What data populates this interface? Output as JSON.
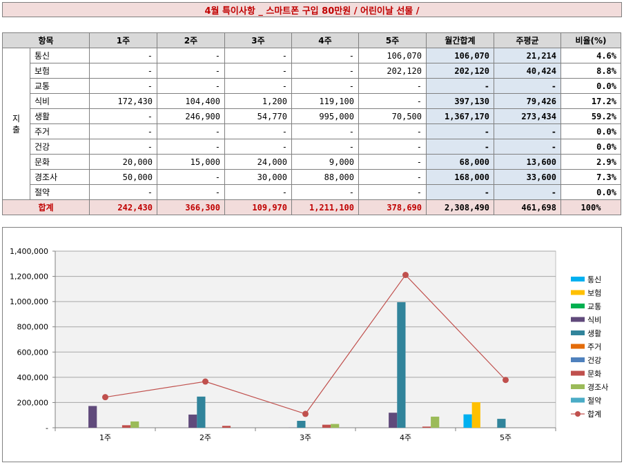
{
  "title": "4월 특이사항 _ 스마트폰 구입 80만원 / 어린이날 선물 /",
  "table": {
    "headers": [
      "항목",
      "1주",
      "2주",
      "3주",
      "4주",
      "5주",
      "월간합계",
      "주평균",
      "비율(%)"
    ],
    "group_label": "지출",
    "rows": [
      {
        "name": "통신",
        "weeks": [
          "-",
          "-",
          "-",
          "-",
          "106,070"
        ],
        "total": "106,070",
        "avg": "21,214",
        "ratio": "4.6%"
      },
      {
        "name": "보험",
        "weeks": [
          "-",
          "-",
          "-",
          "-",
          "202,120"
        ],
        "total": "202,120",
        "avg": "40,424",
        "ratio": "8.8%"
      },
      {
        "name": "교통",
        "weeks": [
          "-",
          "-",
          "-",
          "-",
          "-"
        ],
        "total": "-",
        "avg": "-",
        "ratio": "0.0%"
      },
      {
        "name": "식비",
        "weeks": [
          "172,430",
          "104,400",
          "1,200",
          "119,100",
          "-"
        ],
        "total": "397,130",
        "avg": "79,426",
        "ratio": "17.2%"
      },
      {
        "name": "생활",
        "weeks": [
          "-",
          "246,900",
          "54,770",
          "995,000",
          "70,500"
        ],
        "total": "1,367,170",
        "avg": "273,434",
        "ratio": "59.2%"
      },
      {
        "name": "주거",
        "weeks": [
          "-",
          "-",
          "-",
          "-",
          "-"
        ],
        "total": "-",
        "avg": "-",
        "ratio": "0.0%"
      },
      {
        "name": "건강",
        "weeks": [
          "-",
          "-",
          "-",
          "-",
          "-"
        ],
        "total": "-",
        "avg": "-",
        "ratio": "0.0%"
      },
      {
        "name": "문화",
        "weeks": [
          "20,000",
          "15,000",
          "24,000",
          "9,000",
          "-"
        ],
        "total": "68,000",
        "avg": "13,600",
        "ratio": "2.9%"
      },
      {
        "name": "경조사",
        "weeks": [
          "50,000",
          "-",
          "30,000",
          "88,000",
          "-"
        ],
        "total": "168,000",
        "avg": "33,600",
        "ratio": "7.3%"
      },
      {
        "name": "절약",
        "weeks": [
          "-",
          "-",
          "-",
          "-",
          "-"
        ],
        "total": "-",
        "avg": "-",
        "ratio": "0.0%"
      }
    ],
    "total_row": {
      "name": "합계",
      "weeks": [
        "242,430",
        "366,300",
        "109,970",
        "1,211,100",
        "378,690"
      ],
      "total": "2,308,490",
      "avg": "461,698",
      "ratio": "100%"
    }
  },
  "chart_data": {
    "type": "bar",
    "categories": [
      "1주",
      "2주",
      "3주",
      "4주",
      "5주"
    ],
    "ylim": [
      0,
      1400000
    ],
    "yticks": [
      0,
      200000,
      400000,
      600000,
      800000,
      1000000,
      1200000,
      1400000
    ],
    "ytick_labels": [
      "-",
      "200,000",
      "400,000",
      "600,000",
      "800,000",
      "1,000,000",
      "1,200,000",
      "1,400,000"
    ],
    "grid": true,
    "legend_position": "right",
    "series": [
      {
        "name": "통신",
        "color": "#00b0f0",
        "values": [
          0,
          0,
          0,
          0,
          106070
        ]
      },
      {
        "name": "보험",
        "color": "#ffc000",
        "values": [
          0,
          0,
          0,
          0,
          202120
        ]
      },
      {
        "name": "교통",
        "color": "#00b050",
        "values": [
          0,
          0,
          0,
          0,
          0
        ]
      },
      {
        "name": "식비",
        "color": "#604a7b",
        "values": [
          172430,
          104400,
          1200,
          119100,
          0
        ]
      },
      {
        "name": "생활",
        "color": "#31849b",
        "values": [
          0,
          246900,
          54770,
          995000,
          70500
        ]
      },
      {
        "name": "주거",
        "color": "#e46c0a",
        "values": [
          0,
          0,
          0,
          0,
          0
        ]
      },
      {
        "name": "건강",
        "color": "#4f81bd",
        "values": [
          0,
          0,
          0,
          0,
          0
        ]
      },
      {
        "name": "문화",
        "color": "#c0504d",
        "values": [
          20000,
          15000,
          24000,
          9000,
          0
        ]
      },
      {
        "name": "경조사",
        "color": "#9bbb59",
        "values": [
          50000,
          0,
          30000,
          88000,
          0
        ]
      },
      {
        "name": "절약",
        "color": "#4bacc6",
        "values": [
          0,
          0,
          0,
          0,
          0
        ]
      }
    ],
    "line_series": {
      "name": "합계",
      "color": "#c0504d",
      "values": [
        242430,
        366300,
        109970,
        1211100,
        378690
      ]
    }
  }
}
